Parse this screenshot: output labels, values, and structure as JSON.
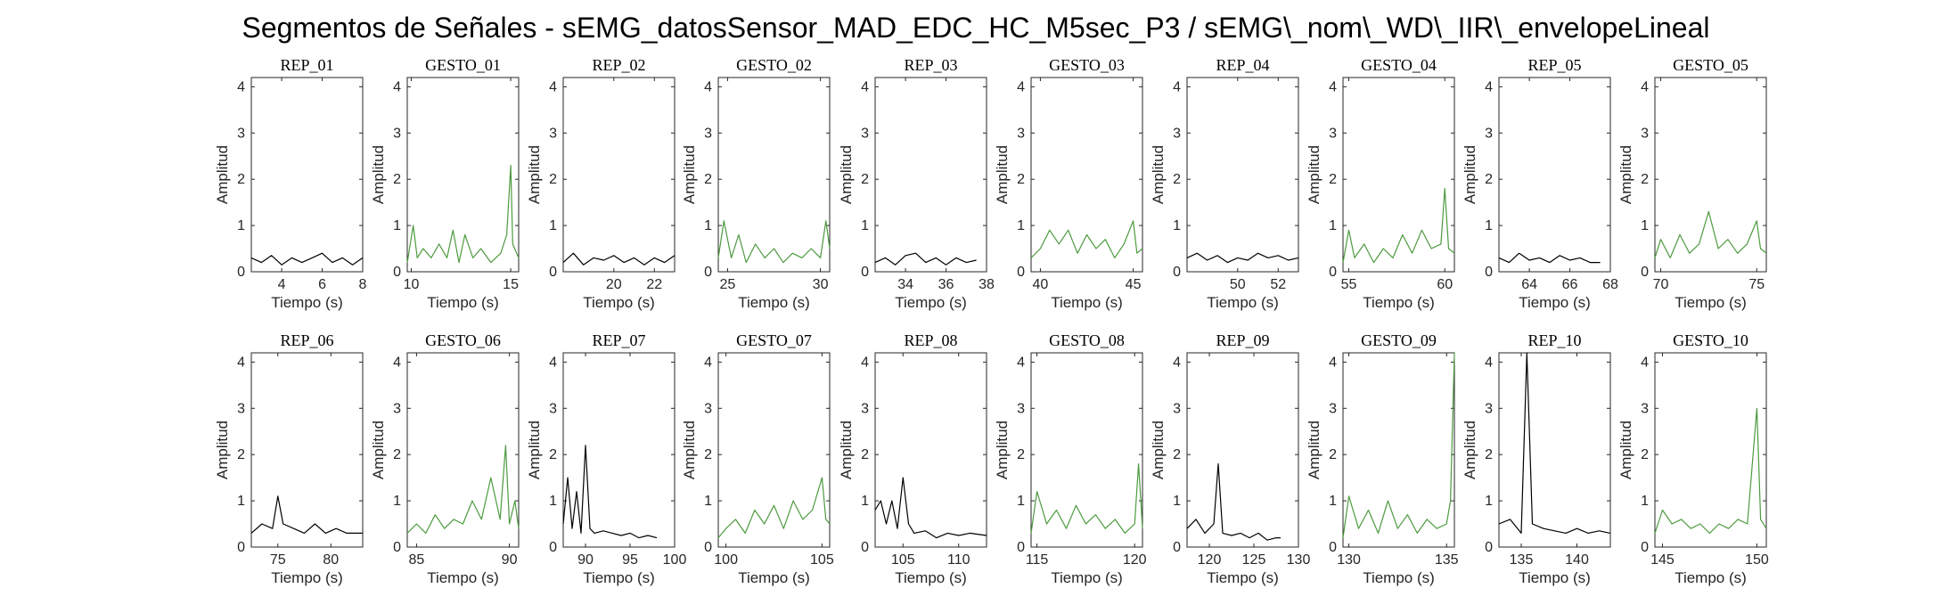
{
  "figure": {
    "title": "Segmentos de Señales - sEMG_datosSensor_MAD_EDC_HC_M5sec_P3 / sEMG\\_nom\\_WD\\_IIR\\_envelopeLineal"
  },
  "colors": {
    "rep": "#000000",
    "gesto": "#4d9a3f",
    "axis": "#262626"
  },
  "chart_data": [
    {
      "type": "line",
      "title": "REP_01",
      "xlabel": "Tiempo (s)",
      "ylabel": "Amplitud",
      "xlim": [
        2.5,
        8
      ],
      "ylim": [
        0,
        4.2
      ],
      "xticks": [
        4,
        6,
        8
      ],
      "yticks": [
        0,
        1,
        2,
        3,
        4
      ],
      "color": "rep",
      "series": [
        {
          "x": [
            2.5,
            3,
            3.5,
            4,
            4.5,
            5,
            5.5,
            6,
            6.5,
            7,
            7.5,
            8
          ],
          "y": [
            0.3,
            0.2,
            0.35,
            0.15,
            0.3,
            0.2,
            0.3,
            0.4,
            0.2,
            0.3,
            0.15,
            0.3
          ]
        }
      ]
    },
    {
      "type": "line",
      "title": "GESTO_01",
      "xlabel": "Tiempo (s)",
      "ylabel": "Amplitud",
      "xlim": [
        9.8,
        15.4
      ],
      "ylim": [
        0,
        4.2
      ],
      "xticks": [
        10,
        15
      ],
      "yticks": [
        0,
        1,
        2,
        3,
        4
      ],
      "color": "gesto",
      "series": [
        {
          "x": [
            9.8,
            10.1,
            10.3,
            10.6,
            11,
            11.4,
            11.8,
            12.1,
            12.4,
            12.7,
            13.1,
            13.5,
            14,
            14.5,
            14.8,
            15,
            15.1,
            15.4
          ],
          "y": [
            0.2,
            1.0,
            0.3,
            0.5,
            0.3,
            0.6,
            0.3,
            0.9,
            0.2,
            0.8,
            0.3,
            0.5,
            0.2,
            0.4,
            0.8,
            2.3,
            0.6,
            0.3
          ]
        }
      ]
    },
    {
      "type": "line",
      "title": "REP_02",
      "xlabel": "Tiempo (s)",
      "ylabel": "Amplitud",
      "xlim": [
        17.5,
        23
      ],
      "ylim": [
        0,
        4.2
      ],
      "xticks": [
        20,
        22
      ],
      "yticks": [
        0,
        1,
        2,
        3,
        4
      ],
      "color": "rep",
      "series": [
        {
          "x": [
            17.5,
            18,
            18.5,
            19,
            19.5,
            20,
            20.5,
            21,
            21.5,
            22,
            22.5,
            23
          ],
          "y": [
            0.2,
            0.4,
            0.15,
            0.3,
            0.25,
            0.35,
            0.2,
            0.3,
            0.15,
            0.3,
            0.2,
            0.35
          ]
        }
      ]
    },
    {
      "type": "line",
      "title": "GESTO_02",
      "xlabel": "Tiempo (s)",
      "ylabel": "Amplitud",
      "xlim": [
        24.5,
        30.5
      ],
      "ylim": [
        0,
        4.2
      ],
      "xticks": [
        25,
        30
      ],
      "yticks": [
        0,
        1,
        2,
        3,
        4
      ],
      "color": "gesto",
      "series": [
        {
          "x": [
            24.5,
            24.8,
            25.2,
            25.6,
            26,
            26.5,
            27,
            27.5,
            28,
            28.5,
            29,
            29.5,
            30,
            30.3,
            30.5
          ],
          "y": [
            0.3,
            1.1,
            0.3,
            0.8,
            0.2,
            0.6,
            0.3,
            0.5,
            0.2,
            0.4,
            0.3,
            0.5,
            0.3,
            1.1,
            0.5
          ]
        }
      ]
    },
    {
      "type": "line",
      "title": "REP_03",
      "xlabel": "Tiempo (s)",
      "ylabel": "Amplitud",
      "xlim": [
        32.5,
        38
      ],
      "ylim": [
        0,
        4.2
      ],
      "xticks": [
        34,
        36,
        38
      ],
      "yticks": [
        0,
        1,
        2,
        3,
        4
      ],
      "color": "rep",
      "series": [
        {
          "x": [
            32.5,
            33,
            33.5,
            34,
            34.5,
            35,
            35.5,
            36,
            36.5,
            37,
            37.5
          ],
          "y": [
            0.2,
            0.3,
            0.15,
            0.35,
            0.4,
            0.2,
            0.3,
            0.15,
            0.3,
            0.2,
            0.25
          ]
        }
      ]
    },
    {
      "type": "line",
      "title": "GESTO_03",
      "xlabel": "Tiempo (s)",
      "ylabel": "Amplitud",
      "xlim": [
        39.5,
        45.5
      ],
      "ylim": [
        0,
        4.2
      ],
      "xticks": [
        40,
        45
      ],
      "yticks": [
        0,
        1,
        2,
        3,
        4
      ],
      "color": "gesto",
      "series": [
        {
          "x": [
            39.5,
            40,
            40.5,
            41,
            41.5,
            42,
            42.5,
            43,
            43.5,
            44,
            44.5,
            45,
            45.2,
            45.5
          ],
          "y": [
            0.3,
            0.5,
            0.9,
            0.6,
            0.9,
            0.4,
            0.8,
            0.5,
            0.7,
            0.3,
            0.6,
            1.1,
            0.4,
            0.5
          ]
        }
      ]
    },
    {
      "type": "line",
      "title": "REP_04",
      "xlabel": "Tiempo (s)",
      "ylabel": "Amplitud",
      "xlim": [
        47.5,
        53
      ],
      "ylim": [
        0,
        4.2
      ],
      "xticks": [
        50,
        52
      ],
      "yticks": [
        0,
        1,
        2,
        3,
        4
      ],
      "color": "rep",
      "series": [
        {
          "x": [
            47.5,
            48,
            48.5,
            49,
            49.5,
            50,
            50.5,
            51,
            51.5,
            52,
            52.5,
            53
          ],
          "y": [
            0.3,
            0.4,
            0.25,
            0.35,
            0.2,
            0.3,
            0.25,
            0.4,
            0.3,
            0.35,
            0.25,
            0.3
          ]
        }
      ]
    },
    {
      "type": "line",
      "title": "GESTO_04",
      "xlabel": "Tiempo (s)",
      "ylabel": "Amplitud",
      "xlim": [
        54.7,
        60.5
      ],
      "ylim": [
        0,
        4.2
      ],
      "xticks": [
        55,
        60
      ],
      "yticks": [
        0,
        1,
        2,
        3,
        4
      ],
      "color": "gesto",
      "series": [
        {
          "x": [
            54.7,
            55,
            55.3,
            55.8,
            56.3,
            56.8,
            57.3,
            57.8,
            58.3,
            58.8,
            59.3,
            59.8,
            60,
            60.2,
            60.5
          ],
          "y": [
            0.2,
            0.9,
            0.3,
            0.6,
            0.2,
            0.5,
            0.3,
            0.8,
            0.4,
            0.9,
            0.5,
            0.6,
            1.8,
            0.5,
            0.4
          ]
        }
      ]
    },
    {
      "type": "line",
      "title": "REP_05",
      "xlabel": "Tiempo (s)",
      "ylabel": "Amplitud",
      "xlim": [
        62.5,
        68
      ],
      "ylim": [
        0,
        4.2
      ],
      "xticks": [
        64,
        66,
        68
      ],
      "yticks": [
        0,
        1,
        2,
        3,
        4
      ],
      "color": "rep",
      "series": [
        {
          "x": [
            62.5,
            63,
            63.5,
            64,
            64.5,
            65,
            65.5,
            66,
            66.5,
            67,
            67.5
          ],
          "y": [
            0.3,
            0.2,
            0.4,
            0.25,
            0.3,
            0.2,
            0.35,
            0.25,
            0.3,
            0.2,
            0.2
          ]
        }
      ]
    },
    {
      "type": "line",
      "title": "GESTO_05",
      "xlabel": "Tiempo (s)",
      "ylabel": "Amplitud",
      "xlim": [
        69.7,
        75.5
      ],
      "ylim": [
        0,
        4.2
      ],
      "xticks": [
        70,
        75
      ],
      "yticks": [
        0,
        1,
        2,
        3,
        4
      ],
      "color": "gesto",
      "series": [
        {
          "x": [
            69.7,
            70,
            70.5,
            71,
            71.5,
            72,
            72.5,
            73,
            73.5,
            74,
            74.5,
            75,
            75.2,
            75.5
          ],
          "y": [
            0.3,
            0.7,
            0.3,
            0.8,
            0.4,
            0.6,
            1.3,
            0.5,
            0.7,
            0.4,
            0.6,
            1.1,
            0.5,
            0.4
          ]
        }
      ]
    },
    {
      "type": "line",
      "title": "REP_06",
      "xlabel": "Tiempo (s)",
      "ylabel": "Amplitud",
      "xlim": [
        72.5,
        83
      ],
      "ylim": [
        0,
        4.2
      ],
      "xticks": [
        75,
        80
      ],
      "yticks": [
        0,
        1,
        2,
        3,
        4
      ],
      "color": "rep",
      "series": [
        {
          "x": [
            72.5,
            73.5,
            74.5,
            75,
            75.5,
            76.5,
            77.5,
            78.5,
            79.5,
            80.5,
            81.5,
            83
          ],
          "y": [
            0.3,
            0.5,
            0.4,
            1.1,
            0.5,
            0.4,
            0.3,
            0.5,
            0.3,
            0.4,
            0.3,
            0.3
          ]
        }
      ]
    },
    {
      "type": "line",
      "title": "GESTO_06",
      "xlabel": "Tiempo (s)",
      "ylabel": "Amplitud",
      "xlim": [
        84.5,
        90.5
      ],
      "ylim": [
        0,
        4.2
      ],
      "xticks": [
        85,
        90
      ],
      "yticks": [
        0,
        1,
        2,
        3,
        4
      ],
      "color": "gesto",
      "series": [
        {
          "x": [
            84.5,
            85,
            85.5,
            86,
            86.5,
            87,
            87.5,
            88,
            88.5,
            89,
            89.5,
            89.8,
            90,
            90.3,
            90.5
          ],
          "y": [
            0.3,
            0.5,
            0.3,
            0.7,
            0.4,
            0.6,
            0.5,
            1.0,
            0.6,
            1.5,
            0.6,
            2.2,
            0.5,
            1.0,
            0.4
          ]
        }
      ]
    },
    {
      "type": "line",
      "title": "REP_07",
      "xlabel": "Tiempo (s)",
      "ylabel": "Amplitud",
      "xlim": [
        87.5,
        100
      ],
      "ylim": [
        0,
        4.2
      ],
      "xticks": [
        90,
        95,
        100
      ],
      "yticks": [
        0,
        1,
        2,
        3,
        4
      ],
      "color": "rep",
      "series": [
        {
          "x": [
            87.5,
            88,
            88.5,
            89,
            89.5,
            90,
            90.5,
            91,
            92,
            93,
            94,
            95,
            96,
            97,
            98
          ],
          "y": [
            0.5,
            1.5,
            0.4,
            1.2,
            0.3,
            2.2,
            0.4,
            0.3,
            0.35,
            0.3,
            0.25,
            0.3,
            0.2,
            0.25,
            0.2
          ]
        }
      ]
    },
    {
      "type": "line",
      "title": "GESTO_07",
      "xlabel": "Tiempo (s)",
      "ylabel": "Amplitud",
      "xlim": [
        99.6,
        105.4
      ],
      "ylim": [
        0,
        4.2
      ],
      "xticks": [
        100,
        105
      ],
      "yticks": [
        0,
        1,
        2,
        3,
        4
      ],
      "color": "gesto",
      "series": [
        {
          "x": [
            99.6,
            100,
            100.5,
            101,
            101.5,
            102,
            102.5,
            103,
            103.5,
            104,
            104.5,
            105,
            105.2,
            105.4
          ],
          "y": [
            0.2,
            0.4,
            0.6,
            0.3,
            0.8,
            0.5,
            0.9,
            0.4,
            1.0,
            0.6,
            0.8,
            1.5,
            0.6,
            0.5
          ]
        }
      ]
    },
    {
      "type": "line",
      "title": "REP_08",
      "xlabel": "Tiempo (s)",
      "ylabel": "Amplitud",
      "xlim": [
        102.5,
        112.5
      ],
      "ylim": [
        0,
        4.2
      ],
      "xticks": [
        105,
        110
      ],
      "yticks": [
        0,
        1,
        2,
        3,
        4
      ],
      "color": "rep",
      "series": [
        {
          "x": [
            102.5,
            103,
            103.5,
            104,
            104.5,
            105,
            105.5,
            106,
            107,
            108,
            109,
            110,
            111,
            112.5
          ],
          "y": [
            0.8,
            1.0,
            0.5,
            1.0,
            0.4,
            1.5,
            0.5,
            0.3,
            0.35,
            0.2,
            0.3,
            0.25,
            0.3,
            0.25
          ]
        }
      ]
    },
    {
      "type": "line",
      "title": "GESTO_08",
      "xlabel": "Tiempo (s)",
      "ylabel": "Amplitud",
      "xlim": [
        114.7,
        120.4
      ],
      "ylim": [
        0,
        4.2
      ],
      "xticks": [
        115,
        120
      ],
      "yticks": [
        0,
        1,
        2,
        3,
        4
      ],
      "color": "gesto",
      "series": [
        {
          "x": [
            114.7,
            115,
            115.5,
            116,
            116.5,
            117,
            117.5,
            118,
            118.5,
            119,
            119.5,
            120,
            120.2,
            120.4
          ],
          "y": [
            0.3,
            1.2,
            0.5,
            0.8,
            0.4,
            0.9,
            0.5,
            0.7,
            0.4,
            0.6,
            0.3,
            0.5,
            1.8,
            0.4
          ]
        }
      ]
    },
    {
      "type": "line",
      "title": "REP_09",
      "xlabel": "Tiempo (s)",
      "ylabel": "Amplitud",
      "xlim": [
        117.5,
        130
      ],
      "ylim": [
        0,
        4.2
      ],
      "xticks": [
        120,
        125,
        130
      ],
      "yticks": [
        0,
        1,
        2,
        3,
        4
      ],
      "color": "rep",
      "series": [
        {
          "x": [
            117.5,
            118.5,
            119.5,
            120.5,
            121,
            121.5,
            122.5,
            123.5,
            124.5,
            125.5,
            126.5,
            127.5,
            128
          ],
          "y": [
            0.4,
            0.6,
            0.3,
            0.5,
            1.8,
            0.3,
            0.25,
            0.3,
            0.2,
            0.3,
            0.15,
            0.2,
            0.2
          ]
        }
      ]
    },
    {
      "type": "line",
      "title": "GESTO_09",
      "xlabel": "Tiempo (s)",
      "ylabel": "Amplitud",
      "xlim": [
        129.7,
        135.4
      ],
      "ylim": [
        0,
        4.2
      ],
      "xticks": [
        130,
        135
      ],
      "yticks": [
        0,
        1,
        2,
        3,
        4
      ],
      "color": "gesto",
      "series": [
        {
          "x": [
            129.7,
            130,
            130.5,
            131,
            131.5,
            132,
            132.5,
            133,
            133.5,
            134,
            134.5,
            135,
            135.2,
            135.4
          ],
          "y": [
            0.2,
            1.1,
            0.4,
            0.8,
            0.3,
            1.0,
            0.4,
            0.7,
            0.3,
            0.6,
            0.4,
            0.5,
            1.0,
            4.2
          ]
        }
      ]
    },
    {
      "type": "line",
      "title": "REP_10",
      "xlabel": "Tiempo (s)",
      "ylabel": "Amplitud",
      "xlim": [
        133,
        143
      ],
      "ylim": [
        0,
        4.2
      ],
      "xticks": [
        135,
        140
      ],
      "yticks": [
        0,
        1,
        2,
        3,
        4
      ],
      "color": "rep",
      "series": [
        {
          "x": [
            133,
            134,
            135,
            135.5,
            136,
            137,
            138,
            139,
            140,
            141,
            142,
            143
          ],
          "y": [
            0.5,
            0.6,
            0.3,
            4.2,
            0.5,
            0.4,
            0.35,
            0.3,
            0.4,
            0.3,
            0.35,
            0.3
          ]
        }
      ]
    },
    {
      "type": "line",
      "title": "GESTO_10",
      "xlabel": "Tiempo (s)",
      "ylabel": "Amplitud",
      "xlim": [
        144.6,
        150.5
      ],
      "ylim": [
        0,
        4.2
      ],
      "xticks": [
        145,
        150
      ],
      "yticks": [
        0,
        1,
        2,
        3,
        4
      ],
      "color": "gesto",
      "series": [
        {
          "x": [
            144.6,
            145,
            145.5,
            146,
            146.5,
            147,
            147.5,
            148,
            148.5,
            149,
            149.5,
            150,
            150.2,
            150.5
          ],
          "y": [
            0.3,
            0.8,
            0.5,
            0.6,
            0.4,
            0.5,
            0.3,
            0.5,
            0.4,
            0.6,
            0.5,
            3.0,
            0.6,
            0.4
          ]
        }
      ]
    }
  ]
}
